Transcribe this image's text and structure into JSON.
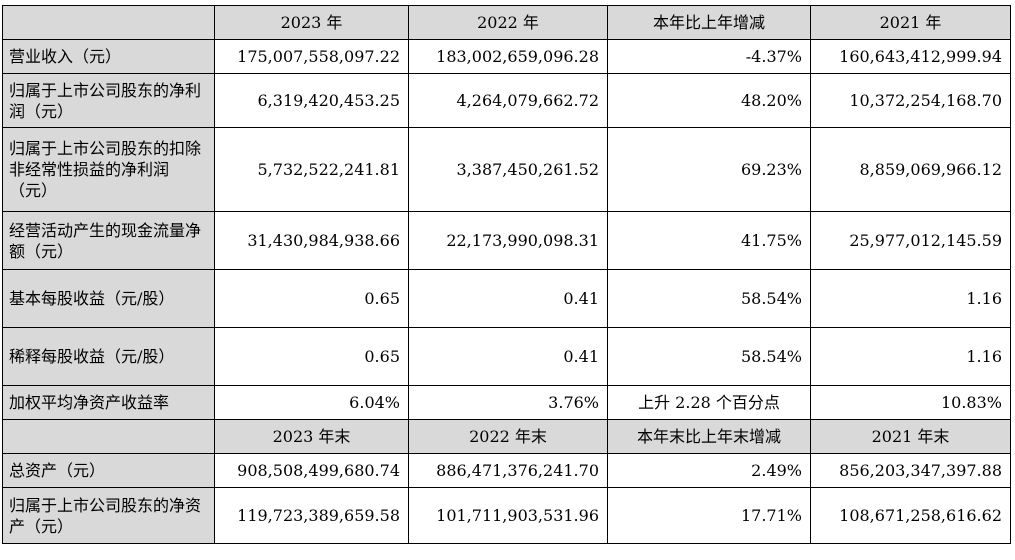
{
  "header1": [
    "",
    "2023 年",
    "2022 年",
    "本年比上年增减",
    "2021 年"
  ],
  "rows1": [
    {
      "label": "营业收入（元）",
      "values": [
        "175,007,558,097.22",
        "183,002,659,096.28",
        "-4.37%",
        "160,643,412,999.94"
      ]
    },
    {
      "label": "归属于上市公司股东的净利润（元）",
      "values": [
        "6,319,420,453.25",
        "4,264,079,662.72",
        "48.20%",
        "10,372,254,168.70"
      ]
    },
    {
      "label": "归属于上市公司股东的扣除非经常性损益的净利润（元）",
      "values": [
        "5,732,522,241.81",
        "3,387,450,261.52",
        "69.23%",
        "8,859,069,966.12"
      ]
    },
    {
      "label": "经营活动产生的现金流量净额（元）",
      "values": [
        "31,430,984,938.66",
        "22,173,990,098.31",
        "41.75%",
        "25,977,012,145.59"
      ]
    },
    {
      "label": "基本每股收益（元/股）",
      "values": [
        "0.65",
        "0.41",
        "58.54%",
        "1.16"
      ]
    },
    {
      "label": "稀释每股收益（元/股）",
      "values": [
        "0.65",
        "0.41",
        "58.54%",
        "1.16"
      ]
    },
    {
      "label": "加权平均净资产收益率",
      "values": [
        "6.04%",
        "3.76%",
        "上升 2.28 个百分点",
        "10.83%"
      ]
    }
  ],
  "header2": [
    "",
    "2023 年末",
    "2022 年末",
    "本年末比上年末增减",
    "2021 年末"
  ],
  "rows2": [
    {
      "label": "总资产（元）",
      "values": [
        "908,508,499,680.74",
        "886,471,376,241.70",
        "2.49%",
        "856,203,347,397.88"
      ]
    },
    {
      "label": "归属于上市公司股东的净资产（元）",
      "values": [
        "119,723,389,659.58",
        "101,711,903,531.96",
        "17.71%",
        "108,671,258,616.62"
      ]
    }
  ]
}
